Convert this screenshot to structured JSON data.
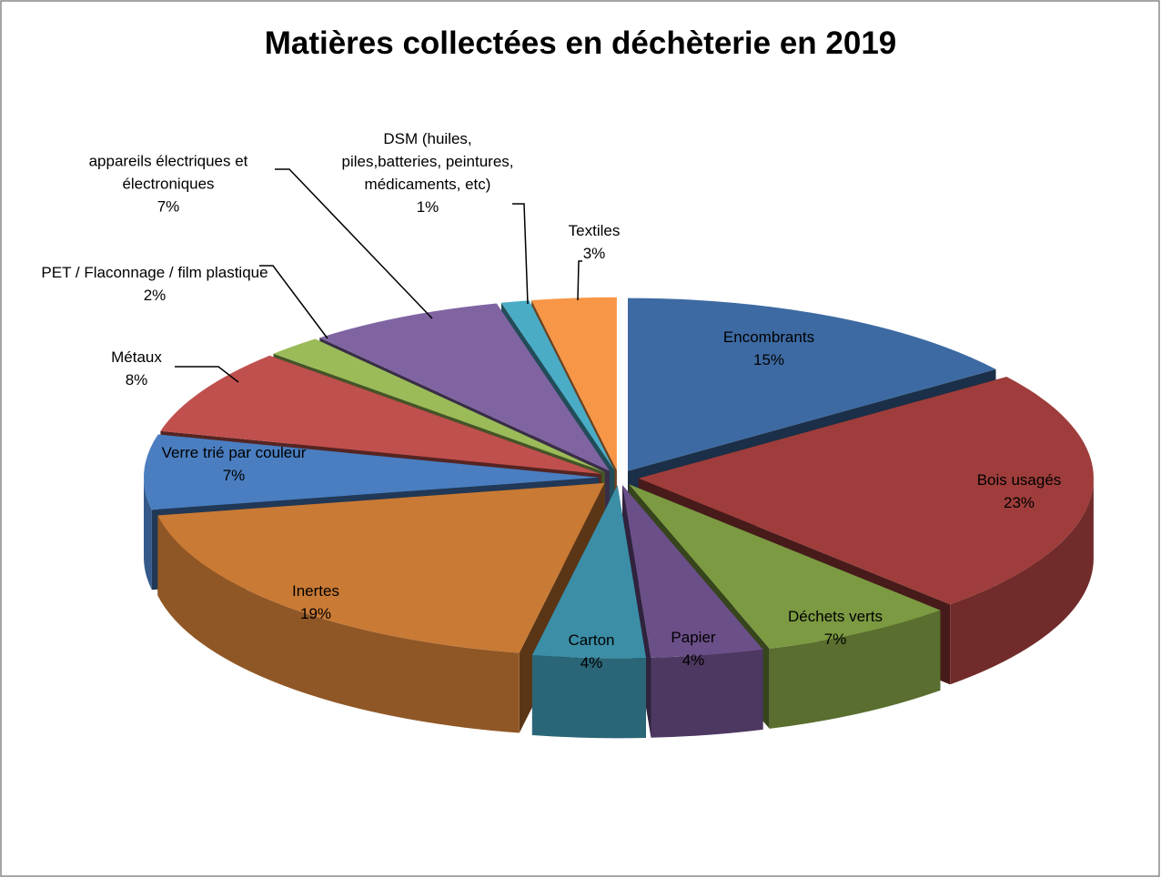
{
  "chart_data": {
    "type": "pie3d",
    "title": "Matières collectées en déchèterie en 2019",
    "categories": [
      "Encombrants",
      "Bois usagés",
      "Déchets verts",
      "Papier",
      "Carton",
      "Inertes",
      "Verre trié par couleur",
      "Métaux",
      "PET / Flaconnage / film plastique",
      "appareils électriques et électroniques",
      "DSM (huiles, piles,batteries, peintures, médicaments, etc)",
      "Textiles"
    ],
    "values": [
      15,
      23,
      7,
      4,
      4,
      19,
      7,
      8,
      2,
      7,
      1,
      3
    ],
    "value_labels": [
      "15%",
      "23%",
      "7%",
      "4%",
      "4%",
      "19%",
      "7%",
      "8%",
      "2%",
      "7%",
      "1%",
      "3%"
    ],
    "colors": [
      "#3d6aa2",
      "#9e3d3b",
      "#7c9a42",
      "#6b4f88",
      "#3b8ea6",
      "#c97a35",
      "#4a7ec0",
      "#c0504d",
      "#9bbb59",
      "#8064a2",
      "#4bacc6",
      "#f79646"
    ]
  }
}
